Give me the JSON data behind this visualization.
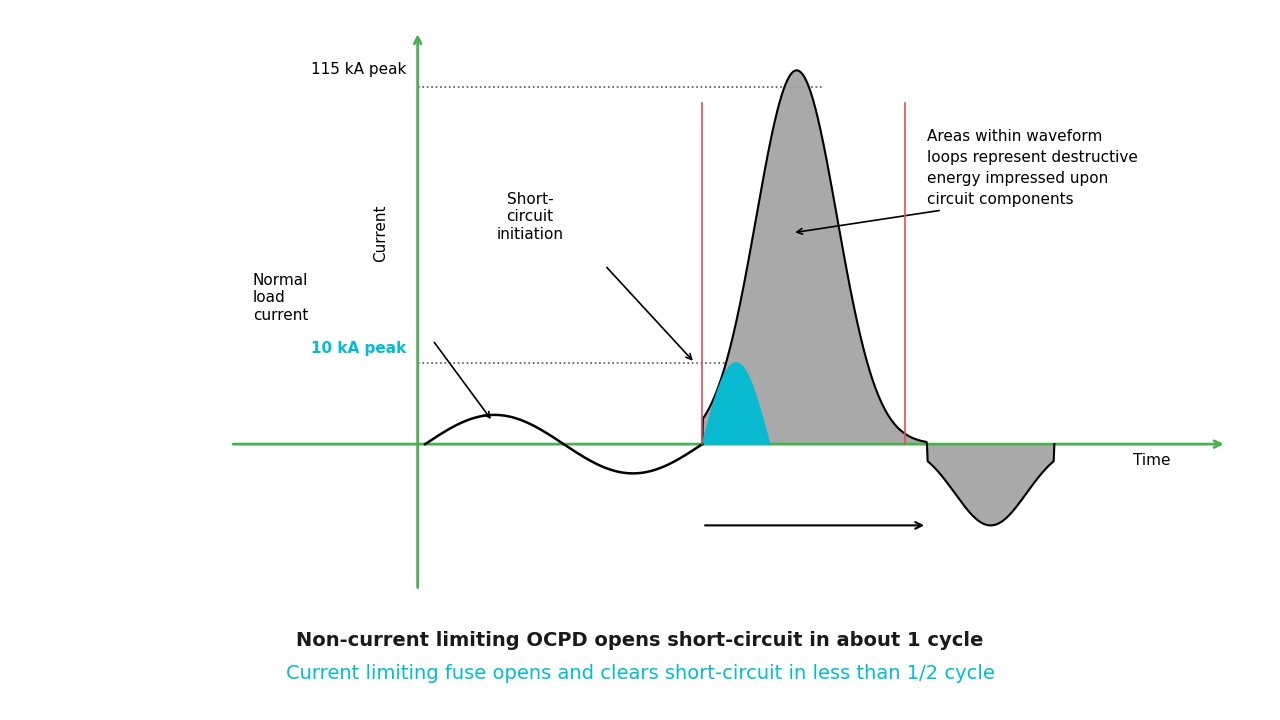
{
  "title_line1": "Non-current limiting OCPD opens short-circuit in about 1 cycle",
  "title_line2": "Current limiting fuse opens and clears short-circuit in less than 1/2 cycle",
  "title_line1_color": "#1a1a1a",
  "title_line2_color": "#00bcd4",
  "bg_color": "#ffffff",
  "axis_color": "#4caf50",
  "label_current": "Current",
  "label_time": "Time",
  "label_115ka": "115 kA peak",
  "label_10ka": "10 kA peak",
  "label_10ka_color": "#00bcd4",
  "label_normal_load": "Normal\nload\ncurrent",
  "label_short_circuit": "Short-\ncircuit\ninitiation",
  "label_area": "Areas within waveform\nloops represent destructive\nenergy impressed upon\ncircuit components",
  "gray_fill": "#a0a0a0",
  "blue_fill": "#00bcd4",
  "red_line_color": "#e05050",
  "title_fontsize": 14,
  "annotation_fontsize": 11,
  "xlim": [
    -2.5,
    11
  ],
  "ylim": [
    -4.5,
    13
  ],
  "yaxis_x": 0,
  "xaxis_y": 0,
  "y_115ka": 11,
  "y_10ka": 2.5,
  "x_sc_start": 3.8,
  "x_red1": 3.8,
  "x_red2": 6.5,
  "x_pos_peak": 5.1,
  "x_pos_end": 6.8,
  "x_neg_end": 8.5,
  "y_pos_peak": 11.5,
  "y_neg_trough": -2.5,
  "x_blue_end": 4.7,
  "y_blue_peak": 2.5
}
